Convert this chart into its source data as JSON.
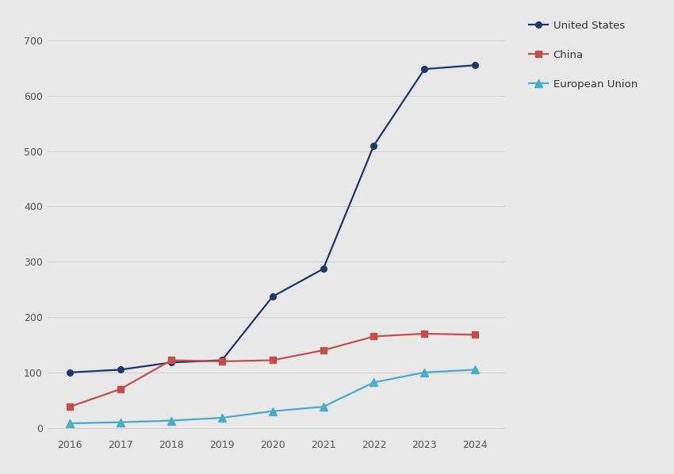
{
  "years": [
    2016,
    2017,
    2018,
    2019,
    2020,
    2021,
    2022,
    2023,
    2024
  ],
  "series": [
    {
      "name": "United States",
      "values": [
        100,
        105,
        118,
        122,
        237,
        287,
        510,
        648,
        655
      ],
      "color": "#1f3869",
      "marker": "o",
      "markersize": 5.5
    },
    {
      "name": "China",
      "values": [
        38,
        70,
        122,
        120,
        122,
        140,
        165,
        170,
        168
      ],
      "color": "#c0504d",
      "marker": "s",
      "markersize": 5.5
    },
    {
      "name": "European Union",
      "values": [
        8,
        10,
        13,
        18,
        30,
        38,
        82,
        100,
        105
      ],
      "color": "#4bacc6",
      "marker": "^",
      "markersize": 6.5
    }
  ],
  "yticks": [
    0,
    100,
    200,
    300,
    400,
    500,
    600,
    700
  ],
  "ylim": [
    -15,
    730
  ],
  "xlim_left": 2015.55,
  "xlim_right": 2024.6,
  "background_color": "#e8e8e8",
  "grid_color": "#d0d0d0",
  "legend_fontsize": 9.5,
  "tick_fontsize": 9,
  "linewidth": 1.6
}
